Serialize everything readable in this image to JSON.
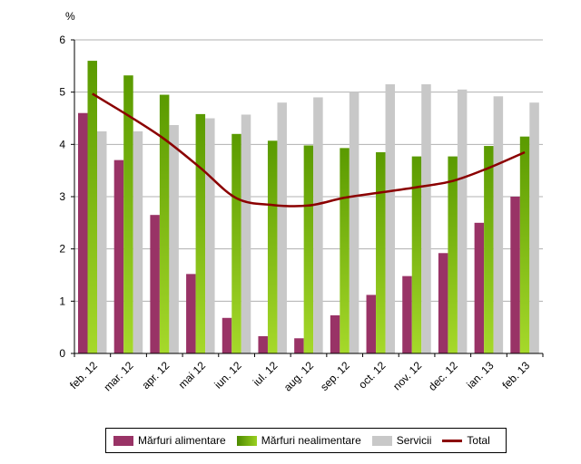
{
  "chart_data": {
    "type": "bar",
    "unit_label": "%",
    "categories": [
      "feb. 12",
      "mar. 12",
      "apr. 12",
      "mai 12",
      "iun. 12",
      "iul. 12",
      "aug. 12",
      "sep. 12",
      "oct. 12",
      "nov. 12",
      "dec. 12",
      "ian. 13",
      "feb. 13"
    ],
    "ylim": [
      0,
      6
    ],
    "yticks": [
      "0",
      "1",
      "2",
      "3",
      "4",
      "5",
      "6"
    ],
    "grid": true,
    "legend_position": "bottom",
    "series": [
      {
        "name": "Mărfuri alimentare",
        "kind": "bar",
        "color": "#993366",
        "values": [
          4.6,
          3.7,
          2.65,
          1.52,
          0.68,
          0.33,
          0.29,
          0.73,
          1.12,
          1.48,
          1.92,
          2.5,
          3.0
        ]
      },
      {
        "name": "Mărfuri nealimentare",
        "kind": "bar",
        "color": "#66a600",
        "values": [
          5.6,
          5.32,
          4.95,
          4.58,
          4.2,
          4.07,
          3.98,
          3.93,
          3.85,
          3.77,
          3.77,
          3.97,
          4.15
        ]
      },
      {
        "name": "Servicii",
        "kind": "bar",
        "color": "#c8c8c8",
        "values": [
          4.25,
          4.25,
          4.37,
          4.5,
          4.57,
          4.8,
          4.9,
          5.0,
          5.15,
          5.15,
          5.05,
          4.92,
          4.8
        ]
      },
      {
        "name": "Total",
        "kind": "line",
        "color": "#8b0000",
        "values": [
          4.97,
          4.55,
          4.1,
          3.55,
          2.97,
          2.84,
          2.83,
          2.98,
          3.08,
          3.18,
          3.3,
          3.55,
          3.85
        ]
      }
    ]
  }
}
